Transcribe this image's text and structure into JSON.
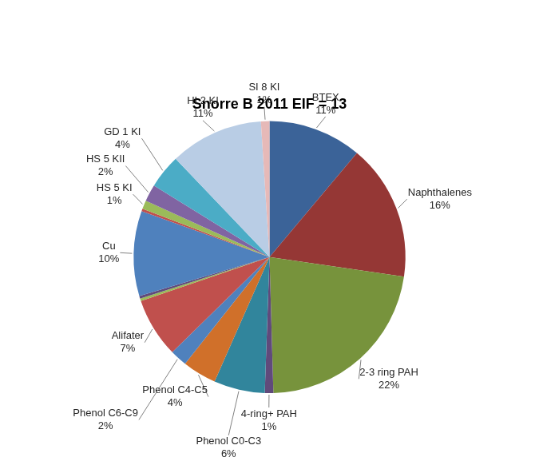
{
  "chart_data": {
    "type": "pie",
    "title": "Snorre B 2011 EIF = 13",
    "categories": [
      "BTEX",
      "Naphthalenes",
      "2-3 ring PAH",
      "4-ring+ PAH",
      "Phenol C0-C3",
      "Phenol C4-C5",
      "Phenol C6-C9",
      "Alifater",
      null,
      null,
      "Cu",
      null,
      "HS 5 KI",
      "HS 5 KII",
      "GD 1 KI",
      "HI 2 KI",
      "SI 8 KI"
    ],
    "values": [
      11,
      16,
      22,
      1,
      6,
      4,
      2,
      7,
      0.3,
      0.3,
      10,
      0.3,
      1,
      2,
      4,
      11,
      1
    ],
    "value_labels": [
      "11%",
      "16%",
      "22%",
      "1%",
      "6%",
      "4%",
      "2%",
      "7%",
      null,
      null,
      "10%",
      null,
      "1%",
      "2%",
      "4%",
      "11%",
      "1%"
    ],
    "colors": [
      "#3b6398",
      "#953735",
      "#77933c",
      "#604a7b",
      "#31859c",
      "#d0702a",
      "#4f81bd",
      "#c0504d",
      "#9bbb59",
      "#604a7b",
      "#4f81bd",
      "#c0504d",
      "#9bbb59",
      "#8064a2",
      "#4bacc6",
      "#b9cde5",
      "#e6b9b8"
    ],
    "data_labels": true
  }
}
